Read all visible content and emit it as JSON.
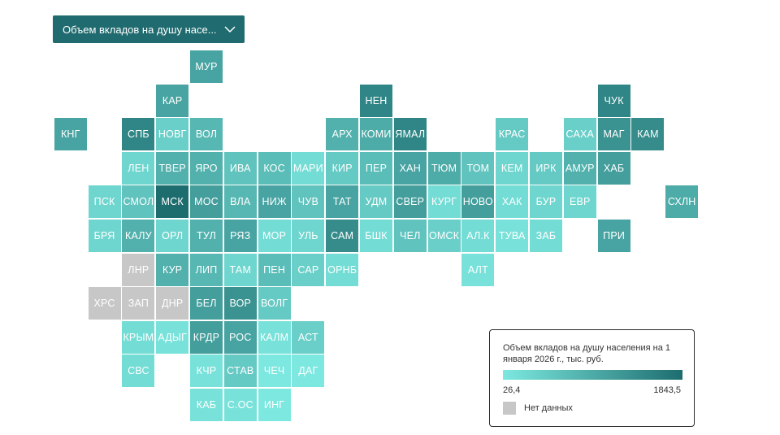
{
  "dropdown": {
    "label": "Объем вкладов на душу насе...",
    "icon": "chevron-down-icon"
  },
  "legend": {
    "title": "Объем вкладов на душу населения на 1 января 2026 г., тыс. руб.",
    "min": "26,4",
    "max": "1843,5",
    "no_data": "Нет данных",
    "colors": {
      "low": "#7de8e0",
      "high": "#1d6d6f",
      "no_data": "#c7c7c7"
    }
  },
  "regions": [
    {
      "code": "МУР",
      "col": 5,
      "row": 0,
      "level": 0.55
    },
    {
      "code": "КАР",
      "col": 4,
      "row": 1,
      "level": 0.55
    },
    {
      "code": "НЕН",
      "col": 10,
      "row": 1,
      "level": 0.8
    },
    {
      "code": "ЧУК",
      "col": 17,
      "row": 1,
      "level": 0.8
    },
    {
      "code": "КНГ",
      "col": 1,
      "row": 2,
      "level": 0.55
    },
    {
      "code": "СПБ",
      "col": 3,
      "row": 2,
      "level": 0.8
    },
    {
      "code": "НОВГ",
      "col": 4,
      "row": 2,
      "level": 0.2
    },
    {
      "code": "ВОЛ",
      "col": 5,
      "row": 2,
      "level": 0.4
    },
    {
      "code": "АРХ",
      "col": 9,
      "row": 2,
      "level": 0.45
    },
    {
      "code": "КОМИ",
      "col": 10,
      "row": 2,
      "level": 0.5
    },
    {
      "code": "ЯМАЛ",
      "col": 11,
      "row": 2,
      "level": 0.8
    },
    {
      "code": "КРАС",
      "col": 14,
      "row": 2,
      "level": 0.25
    },
    {
      "code": "САХА",
      "col": 16,
      "row": 2,
      "level": 0.2
    },
    {
      "code": "МАГ",
      "col": 17,
      "row": 2,
      "level": 0.7
    },
    {
      "code": "КАМ",
      "col": 18,
      "row": 2,
      "level": 0.75
    },
    {
      "code": "ЛЕН",
      "col": 3,
      "row": 3,
      "level": 0.15
    },
    {
      "code": "ТВЕР",
      "col": 4,
      "row": 3,
      "level": 0.45
    },
    {
      "code": "ЯРО",
      "col": 5,
      "row": 3,
      "level": 0.45
    },
    {
      "code": "ИВА",
      "col": 6,
      "row": 3,
      "level": 0.3
    },
    {
      "code": "КОС",
      "col": 7,
      "row": 3,
      "level": 0.35
    },
    {
      "code": "МАРИ",
      "col": 8,
      "row": 3,
      "level": 0.1
    },
    {
      "code": "КИР",
      "col": 9,
      "row": 3,
      "level": 0.25
    },
    {
      "code": "ПЕР",
      "col": 10,
      "row": 3,
      "level": 0.35
    },
    {
      "code": "ХАН",
      "col": 11,
      "row": 3,
      "level": 0.55
    },
    {
      "code": "ТЮМ",
      "col": 12,
      "row": 3,
      "level": 0.5
    },
    {
      "code": "ТОМ",
      "col": 13,
      "row": 3,
      "level": 0.3
    },
    {
      "code": "КЕМ",
      "col": 14,
      "row": 3,
      "level": 0.15
    },
    {
      "code": "ИРК",
      "col": 15,
      "row": 3,
      "level": 0.25
    },
    {
      "code": "АМУР",
      "col": 16,
      "row": 3,
      "level": 0.45
    },
    {
      "code": "ХАБ",
      "col": 17,
      "row": 3,
      "level": 0.6
    },
    {
      "code": "ПСК",
      "col": 2,
      "row": 4,
      "level": 0.15
    },
    {
      "code": "СМОЛ",
      "col": 3,
      "row": 4,
      "level": 0.3
    },
    {
      "code": "МСК",
      "col": 4,
      "row": 4,
      "level": 1.0
    },
    {
      "code": "МОС",
      "col": 5,
      "row": 4,
      "level": 0.6
    },
    {
      "code": "ВЛА",
      "col": 6,
      "row": 4,
      "level": 0.4
    },
    {
      "code": "НИЖ",
      "col": 7,
      "row": 4,
      "level": 0.55
    },
    {
      "code": "ЧУВ",
      "col": 8,
      "row": 4,
      "level": 0.3
    },
    {
      "code": "ТАТ",
      "col": 9,
      "row": 4,
      "level": 0.55
    },
    {
      "code": "УДМ",
      "col": 10,
      "row": 4,
      "level": 0.25
    },
    {
      "code": "СВЕР",
      "col": 11,
      "row": 4,
      "level": 0.6
    },
    {
      "code": "КУРГ",
      "col": 12,
      "row": 4,
      "level": 0.1
    },
    {
      "code": "НОВО",
      "col": 13,
      "row": 4,
      "level": 0.6
    },
    {
      "code": "ХАК",
      "col": 14,
      "row": 4,
      "level": 0.1
    },
    {
      "code": "БУР",
      "col": 15,
      "row": 4,
      "level": 0.15
    },
    {
      "code": "ЕВР",
      "col": 16,
      "row": 4,
      "level": 0.15
    },
    {
      "code": "СХЛН",
      "col": 19,
      "row": 4,
      "level": 0.5
    },
    {
      "code": "БРЯ",
      "col": 2,
      "row": 5,
      "level": 0.15
    },
    {
      "code": "КАЛУ",
      "col": 3,
      "row": 5,
      "level": 0.45
    },
    {
      "code": "ОРЛ",
      "col": 4,
      "row": 5,
      "level": 0.15
    },
    {
      "code": "ТУЛ",
      "col": 5,
      "row": 5,
      "level": 0.45
    },
    {
      "code": "РЯЗ",
      "col": 6,
      "row": 5,
      "level": 0.55
    },
    {
      "code": "МОР",
      "col": 7,
      "row": 5,
      "level": 0.1
    },
    {
      "code": "УЛЬ",
      "col": 8,
      "row": 5,
      "level": 0.15
    },
    {
      "code": "САМ",
      "col": 9,
      "row": 5,
      "level": 0.75
    },
    {
      "code": "БШК",
      "col": 10,
      "row": 5,
      "level": 0.1
    },
    {
      "code": "ЧЕЛ",
      "col": 11,
      "row": 5,
      "level": 0.3
    },
    {
      "code": "ОМСК",
      "col": 12,
      "row": 5,
      "level": 0.2
    },
    {
      "code": "АЛ.К",
      "col": 13,
      "row": 5,
      "level": 0.1
    },
    {
      "code": "ТУВА",
      "col": 14,
      "row": 5,
      "level": 0.05
    },
    {
      "code": "ЗАБ",
      "col": 15,
      "row": 5,
      "level": 0.1
    },
    {
      "code": "ПРИ",
      "col": 17,
      "row": 5,
      "level": 0.55
    },
    {
      "code": "ЛНР",
      "col": 3,
      "row": 6,
      "nodata": true
    },
    {
      "code": "КУР",
      "col": 4,
      "row": 6,
      "level": 0.45
    },
    {
      "code": "ЛИП",
      "col": 5,
      "row": 6,
      "level": 0.4
    },
    {
      "code": "ТАМ",
      "col": 6,
      "row": 6,
      "level": 0.15
    },
    {
      "code": "ПЕН",
      "col": 7,
      "row": 6,
      "level": 0.35
    },
    {
      "code": "САР",
      "col": 8,
      "row": 6,
      "level": 0.2
    },
    {
      "code": "ОРНБ",
      "col": 9,
      "row": 6,
      "level": 0.1
    },
    {
      "code": "АЛТ",
      "col": 13,
      "row": 6,
      "level": 0.05
    },
    {
      "code": "ХРС",
      "col": 2,
      "row": 7,
      "nodata": true
    },
    {
      "code": "ЗАП",
      "col": 3,
      "row": 7,
      "nodata": true
    },
    {
      "code": "ДНР",
      "col": 4,
      "row": 7,
      "nodata": true
    },
    {
      "code": "БЕЛ",
      "col": 5,
      "row": 7,
      "level": 0.6
    },
    {
      "code": "ВОР",
      "col": 6,
      "row": 7,
      "level": 0.7
    },
    {
      "code": "ВОЛГ",
      "col": 7,
      "row": 7,
      "level": 0.25
    },
    {
      "code": "КРЫМ",
      "col": 3,
      "row": 8,
      "level": 0.1
    },
    {
      "code": "АДЫГ",
      "col": 4,
      "row": 8,
      "level": 0.05
    },
    {
      "code": "КРДР",
      "col": 5,
      "row": 8,
      "level": 0.6
    },
    {
      "code": "РОС",
      "col": 6,
      "row": 8,
      "level": 0.55
    },
    {
      "code": "КАЛМ",
      "col": 7,
      "row": 8,
      "level": 0.05
    },
    {
      "code": "АСТ",
      "col": 8,
      "row": 8,
      "level": 0.2
    },
    {
      "code": "СВС",
      "col": 3,
      "row": 9,
      "level": 0.1
    },
    {
      "code": "КЧР",
      "col": 5,
      "row": 9,
      "level": 0.05
    },
    {
      "code": "СТАВ",
      "col": 6,
      "row": 9,
      "level": 0.25
    },
    {
      "code": "ЧЕЧ",
      "col": 7,
      "row": 9,
      "level": 0.0
    },
    {
      "code": "ДАГ",
      "col": 8,
      "row": 9,
      "level": 0.0
    },
    {
      "code": "КАБ",
      "col": 5,
      "row": 10,
      "level": 0.05
    },
    {
      "code": "С.ОС",
      "col": 6,
      "row": 10,
      "level": 0.05
    },
    {
      "code": "ИНГ",
      "col": 7,
      "row": 10,
      "level": 0.0
    }
  ]
}
